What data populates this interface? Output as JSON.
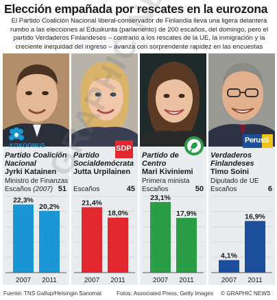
{
  "title": "Elección empañada por rescates en la eurozona",
  "intro": "El Partido Coalición Nacional liberal-conservador de Finlandia lleva una ligera delantera rumbo a las elecciones al Eduskunta (parlamento) de 200 escaños, del domingo, pero el partido Verdaderos Finlandeses – contrario a los rescates de la UE, la inmigración y la creciente inequidad del ingreso – avanza con sorprendente rapidez en las encuestas",
  "seats_label_prefix": "Escaños",
  "colors": {
    "kokoomus": "#1a96d4",
    "sdp": "#e0282e",
    "keskusta": "#2a9d46",
    "perus": "#1d4e9c",
    "panel": "#e9ecef"
  },
  "parties": [
    {
      "party": "Partido Coalición Nacional",
      "leader": "Jyrki Katainen",
      "role": "Ministro de Finanzas",
      "seats_year": "(2007)",
      "seats": "51",
      "logo_text": "KOKOOMUS"
    },
    {
      "party": "Partido Socialdemócrata",
      "leader": "Jutta Urpilainen",
      "role": "",
      "seats_year": "",
      "seats": "45",
      "logo_text": "SDP"
    },
    {
      "party": "Partido de Centro",
      "leader": "Mari Kiviniemi",
      "role": "Primera minista",
      "seats_year": "",
      "seats": "50",
      "logo_text": ""
    },
    {
      "party": "Verdaderos Finlandeses",
      "leader": "Timo Soini",
      "role": "Diputado de UE",
      "seats_year": "",
      "seats": "6",
      "logo_text": "PerusS"
    }
  ],
  "chart_data": {
    "type": "bar",
    "categories": [
      "2007",
      "2011"
    ],
    "ylim": [
      0,
      26
    ],
    "title": "",
    "xlabel": "",
    "ylabel": "",
    "series": [
      {
        "name": "Partido Coalición Nacional",
        "values": [
          22.3,
          20.2
        ],
        "labels": [
          "22,3%",
          "20,2%"
        ]
      },
      {
        "name": "Partido Socialdemócrata",
        "values": [
          21.4,
          18.0
        ],
        "labels": [
          "21,4%",
          "18,0%"
        ]
      },
      {
        "name": "Partido de Centro",
        "values": [
          23.1,
          17.9
        ],
        "labels": [
          "23,1%",
          "17,9%"
        ]
      },
      {
        "name": "Verdaderos Finlandeses",
        "values": [
          4.1,
          16.9
        ],
        "labels": [
          "4,1%",
          "16,9%"
        ]
      }
    ]
  },
  "footer": {
    "source": "Fuente: TNS Gallup/Helsingin Sanomat",
    "photos": "Fotos: Associated Press, Getty Images",
    "credit": "© GRAPHIC NEWS"
  },
  "watermark": "GRAPHIC NEWS"
}
